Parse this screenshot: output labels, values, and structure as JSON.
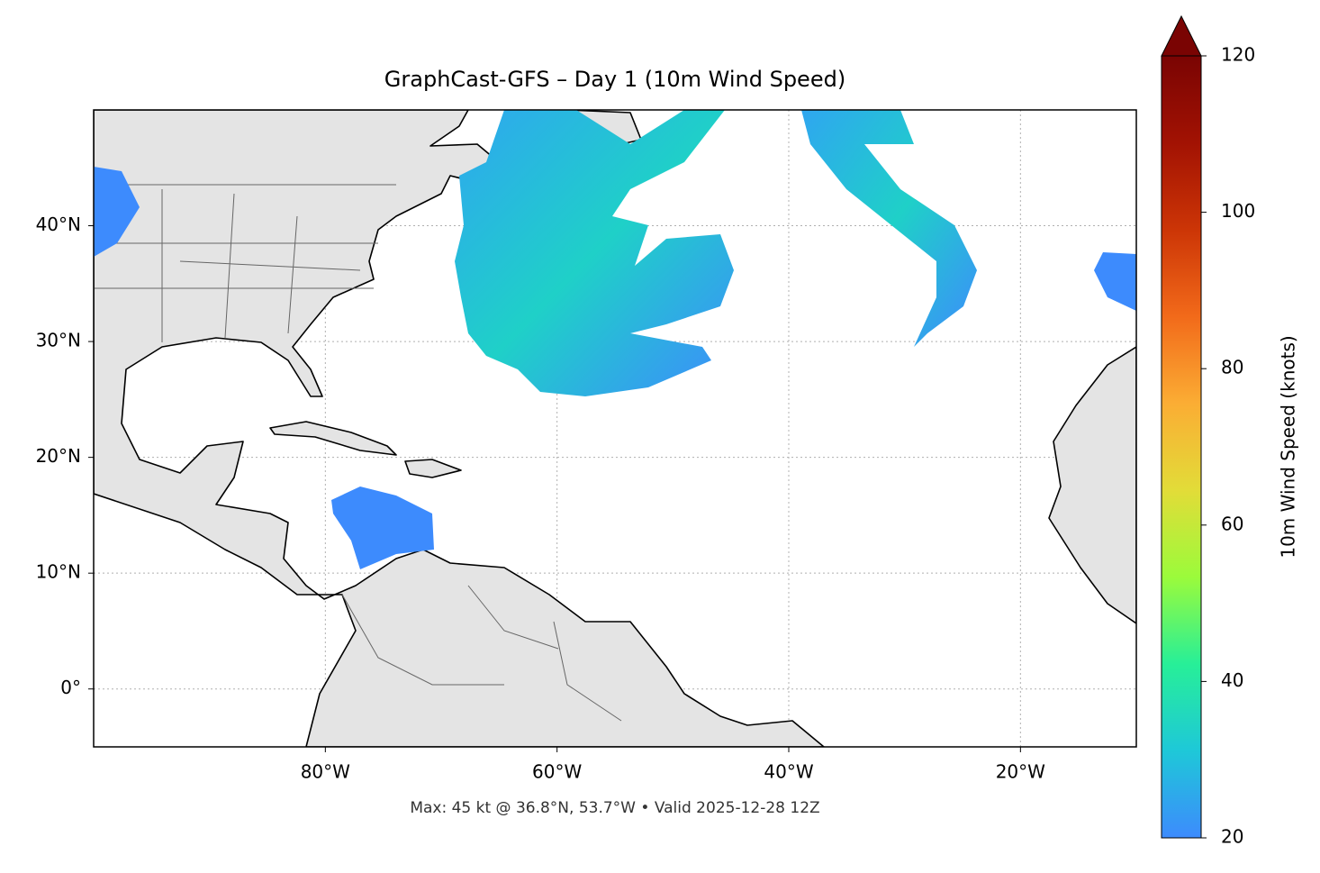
{
  "chart_data": {
    "type": "map",
    "title": "GraphCast-GFS – Day 1 (10m Wind Speed)",
    "footer": "Max: 45 kt @ 36.8°N, 53.7°W • Valid 2025-12-28 12Z",
    "xlim": [
      -100,
      -10
    ],
    "ylim": [
      -5,
      50
    ],
    "xticks": [
      {
        "value": -80,
        "label": "80°W"
      },
      {
        "value": -60,
        "label": "60°W"
      },
      {
        "value": -40,
        "label": "40°W"
      },
      {
        "value": -20,
        "label": "20°W"
      }
    ],
    "yticks": [
      {
        "value": 0,
        "label": "0°"
      },
      {
        "value": 10,
        "label": "10°N"
      },
      {
        "value": 20,
        "label": "20°N"
      },
      {
        "value": 30,
        "label": "30°N"
      },
      {
        "value": 40,
        "label": "40°N"
      }
    ],
    "grid": true,
    "colorbar": {
      "label": "10m Wind Speed (knots)",
      "lim": [
        20,
        120
      ],
      "ticks": [
        20,
        40,
        60,
        80,
        100,
        120
      ],
      "extend": "max",
      "colors": [
        "#3d8bfd",
        "#1ec8d8",
        "#27ef98",
        "#9bfb3b",
        "#e2dc38",
        "#fbad34",
        "#f26a1a",
        "#cc3506",
        "#a21203",
        "#7a0403"
      ]
    }
  }
}
